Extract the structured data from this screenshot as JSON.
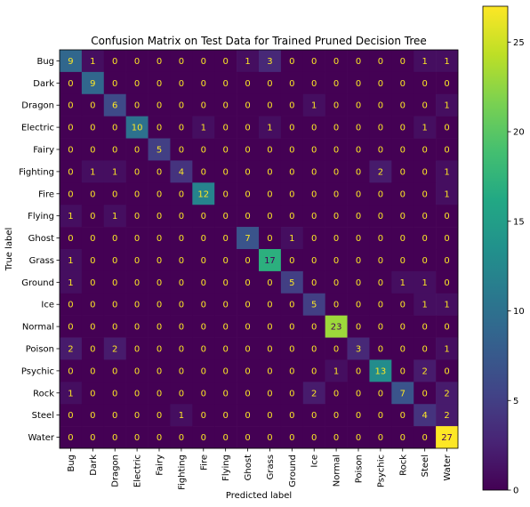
{
  "chart_data": {
    "type": "heatmap",
    "title": "Confusion Matrix on Test Data for Trained Pruned Decision Tree",
    "xlabel": "Predicted label",
    "ylabel": "True label",
    "labels": [
      "Bug",
      "Dark",
      "Dragon",
      "Electric",
      "Fairy",
      "Fighting",
      "Fire",
      "Flying",
      "Ghost",
      "Grass",
      "Ground",
      "Ice",
      "Normal",
      "Poison",
      "Psychic",
      "Rock",
      "Steel",
      "Water"
    ],
    "matrix": [
      [
        9,
        1,
        0,
        0,
        0,
        0,
        0,
        0,
        1,
        3,
        0,
        0,
        0,
        0,
        0,
        0,
        1,
        1
      ],
      [
        0,
        9,
        0,
        0,
        0,
        0,
        0,
        0,
        0,
        0,
        0,
        0,
        0,
        0,
        0,
        0,
        0,
        0
      ],
      [
        0,
        0,
        6,
        0,
        0,
        0,
        0,
        0,
        0,
        0,
        0,
        1,
        0,
        0,
        0,
        0,
        0,
        1
      ],
      [
        0,
        0,
        0,
        10,
        0,
        0,
        1,
        0,
        0,
        1,
        0,
        0,
        0,
        0,
        0,
        0,
        1,
        0
      ],
      [
        0,
        0,
        0,
        0,
        5,
        0,
        0,
        0,
        0,
        0,
        0,
        0,
        0,
        0,
        0,
        0,
        0,
        0
      ],
      [
        0,
        1,
        1,
        0,
        0,
        4,
        0,
        0,
        0,
        0,
        0,
        0,
        0,
        0,
        2,
        0,
        0,
        1
      ],
      [
        0,
        0,
        0,
        0,
        0,
        0,
        12,
        0,
        0,
        0,
        0,
        0,
        0,
        0,
        0,
        0,
        0,
        1
      ],
      [
        1,
        0,
        1,
        0,
        0,
        0,
        0,
        0,
        0,
        0,
        0,
        0,
        0,
        0,
        0,
        0,
        0,
        0
      ],
      [
        0,
        0,
        0,
        0,
        0,
        0,
        0,
        0,
        7,
        0,
        1,
        0,
        0,
        0,
        0,
        0,
        0,
        0
      ],
      [
        1,
        0,
        0,
        0,
        0,
        0,
        0,
        0,
        0,
        17,
        0,
        0,
        0,
        0,
        0,
        0,
        0,
        0
      ],
      [
        1,
        0,
        0,
        0,
        0,
        0,
        0,
        0,
        0,
        0,
        5,
        0,
        0,
        0,
        0,
        1,
        1,
        0
      ],
      [
        0,
        0,
        0,
        0,
        0,
        0,
        0,
        0,
        0,
        0,
        0,
        5,
        0,
        0,
        0,
        0,
        1,
        1
      ],
      [
        0,
        0,
        0,
        0,
        0,
        0,
        0,
        0,
        0,
        0,
        0,
        0,
        23,
        0,
        0,
        0,
        0,
        0
      ],
      [
        2,
        0,
        2,
        0,
        0,
        0,
        0,
        0,
        0,
        0,
        0,
        0,
        0,
        3,
        0,
        0,
        0,
        1
      ],
      [
        0,
        0,
        0,
        0,
        0,
        0,
        0,
        0,
        0,
        0,
        0,
        0,
        1,
        0,
        13,
        0,
        2,
        0
      ],
      [
        1,
        0,
        0,
        0,
        0,
        0,
        0,
        0,
        0,
        0,
        0,
        2,
        0,
        0,
        0,
        7,
        0,
        2
      ],
      [
        0,
        0,
        0,
        0,
        0,
        1,
        0,
        0,
        0,
        0,
        0,
        0,
        0,
        0,
        0,
        0,
        4,
        2
      ],
      [
        0,
        0,
        0,
        0,
        0,
        0,
        0,
        0,
        0,
        0,
        0,
        0,
        0,
        0,
        0,
        0,
        0,
        27
      ]
    ],
    "colormap": "viridis",
    "colorbar": {
      "min": 0,
      "max": 27,
      "ticks": [
        0,
        5,
        10,
        15,
        20,
        25
      ]
    },
    "grid": false
  }
}
